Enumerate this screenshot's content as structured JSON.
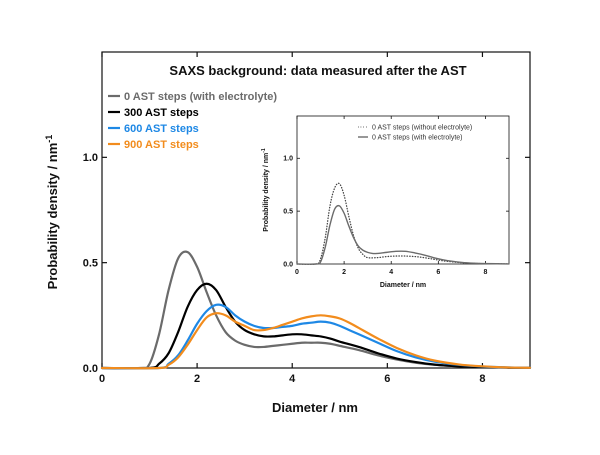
{
  "chart_data": [
    {
      "type": "line",
      "title": "SAXS background: data measured after the AST",
      "xlabel": "Diameter / nm",
      "ylabel_main": "Probability density / nm",
      "ylabel_sup": "-1",
      "xlim": [
        0,
        9
      ],
      "ylim": [
        0,
        1.5
      ],
      "xticks": [
        "0",
        "2",
        "4",
        "6",
        "8"
      ],
      "yticks": [
        "0.0",
        "0.5",
        "1.0"
      ],
      "legend_position": "top-left",
      "series": [
        {
          "name": "0 AST steps (with electrolyte)",
          "color": "#6b6b6b",
          "x": [
            0,
            0.8,
            1.0,
            1.2,
            1.4,
            1.6,
            1.8,
            2.0,
            2.2,
            2.4,
            2.6,
            2.8,
            3.0,
            3.2,
            3.4,
            3.6,
            3.8,
            4.0,
            4.2,
            4.4,
            4.6,
            4.8,
            5.0,
            5.4,
            5.8,
            6.2,
            6.6,
            7.0,
            7.5,
            8.0,
            8.5,
            9.0
          ],
          "y": [
            0,
            0.0,
            0.02,
            0.16,
            0.37,
            0.52,
            0.55,
            0.48,
            0.36,
            0.25,
            0.17,
            0.13,
            0.11,
            0.1,
            0.1,
            0.105,
            0.11,
            0.115,
            0.12,
            0.12,
            0.12,
            0.115,
            0.105,
            0.085,
            0.06,
            0.04,
            0.025,
            0.015,
            0.008,
            0.004,
            0.002,
            0.001
          ]
        },
        {
          "name": "300 AST steps",
          "color": "#000000",
          "x": [
            0,
            1.0,
            1.2,
            1.4,
            1.6,
            1.8,
            2.0,
            2.2,
            2.4,
            2.6,
            2.8,
            3.0,
            3.2,
            3.4,
            3.6,
            3.8,
            4.0,
            4.2,
            4.4,
            4.6,
            4.8,
            5.0,
            5.4,
            5.8,
            6.2,
            6.6,
            7.0,
            7.5,
            8.0,
            8.5,
            9.0
          ],
          "y": [
            0,
            0.0,
            0.02,
            0.07,
            0.17,
            0.29,
            0.37,
            0.4,
            0.37,
            0.29,
            0.22,
            0.18,
            0.16,
            0.15,
            0.15,
            0.155,
            0.16,
            0.16,
            0.155,
            0.15,
            0.14,
            0.125,
            0.1,
            0.07,
            0.045,
            0.028,
            0.016,
            0.008,
            0.004,
            0.002,
            0.001
          ]
        },
        {
          "name": "600 AST steps",
          "color": "#1e88e5",
          "x": [
            0,
            1.2,
            1.4,
            1.6,
            1.8,
            2.0,
            2.2,
            2.4,
            2.6,
            2.8,
            3.0,
            3.2,
            3.4,
            3.6,
            3.8,
            4.0,
            4.2,
            4.4,
            4.6,
            4.8,
            5.0,
            5.2,
            5.4,
            5.8,
            6.2,
            6.6,
            7.0,
            7.5,
            8.0,
            8.5,
            9.0
          ],
          "y": [
            0,
            0.0,
            0.02,
            0.06,
            0.13,
            0.21,
            0.27,
            0.3,
            0.29,
            0.25,
            0.22,
            0.2,
            0.19,
            0.19,
            0.195,
            0.2,
            0.21,
            0.215,
            0.22,
            0.215,
            0.2,
            0.18,
            0.16,
            0.12,
            0.08,
            0.05,
            0.03,
            0.015,
            0.007,
            0.003,
            0.001
          ]
        },
        {
          "name": "900 AST steps",
          "color": "#f28c1d",
          "x": [
            0,
            1.2,
            1.4,
            1.6,
            1.8,
            2.0,
            2.2,
            2.4,
            2.6,
            2.8,
            3.0,
            3.2,
            3.4,
            3.6,
            3.8,
            4.0,
            4.2,
            4.4,
            4.6,
            4.8,
            5.0,
            5.2,
            5.4,
            5.8,
            6.2,
            6.6,
            7.0,
            7.5,
            8.0,
            8.5,
            9.0
          ],
          "y": [
            0,
            0.0,
            0.015,
            0.05,
            0.11,
            0.18,
            0.24,
            0.26,
            0.25,
            0.22,
            0.2,
            0.18,
            0.18,
            0.19,
            0.205,
            0.22,
            0.235,
            0.245,
            0.25,
            0.245,
            0.235,
            0.215,
            0.19,
            0.14,
            0.095,
            0.06,
            0.035,
            0.017,
            0.008,
            0.003,
            0.001
          ]
        }
      ]
    },
    {
      "type": "line",
      "title": "",
      "xlabel": "Diameter / nm",
      "ylabel_main": "Probability density / nm",
      "ylabel_sup": "-1",
      "xlim": [
        0,
        9
      ],
      "ylim": [
        0,
        1.4
      ],
      "xticks": [
        "0",
        "2",
        "4",
        "6",
        "8"
      ],
      "yticks": [
        "0.0",
        "0.5",
        "1.0"
      ],
      "legend_position": "top-right",
      "series": [
        {
          "name": "0 AST steps (without electrolyte)",
          "color": "#444444",
          "style": "dotted",
          "x": [
            0,
            0.8,
            1.0,
            1.2,
            1.4,
            1.6,
            1.8,
            2.0,
            2.2,
            2.4,
            2.6,
            2.8,
            3.0,
            3.4,
            3.8,
            4.2,
            4.6,
            5.0,
            5.4,
            5.8,
            6.2,
            6.6,
            7.0,
            7.5,
            8.0,
            9.0
          ],
          "y": [
            0,
            0.0,
            0.05,
            0.25,
            0.55,
            0.72,
            0.76,
            0.65,
            0.45,
            0.27,
            0.15,
            0.09,
            0.06,
            0.06,
            0.07,
            0.075,
            0.075,
            0.07,
            0.06,
            0.045,
            0.03,
            0.02,
            0.012,
            0.006,
            0.003,
            0.001
          ]
        },
        {
          "name": "0 AST steps (with electrolyte)",
          "color": "#6b6b6b",
          "style": "solid",
          "x": [
            0,
            0.8,
            1.0,
            1.2,
            1.4,
            1.6,
            1.8,
            2.0,
            2.2,
            2.4,
            2.6,
            2.8,
            3.0,
            3.2,
            3.4,
            3.8,
            4.2,
            4.6,
            5.0,
            5.4,
            5.8,
            6.2,
            6.6,
            7.0,
            7.5,
            8.0,
            9.0
          ],
          "y": [
            0,
            0.0,
            0.02,
            0.16,
            0.37,
            0.52,
            0.55,
            0.48,
            0.36,
            0.25,
            0.17,
            0.13,
            0.11,
            0.1,
            0.1,
            0.11,
            0.12,
            0.12,
            0.105,
            0.085,
            0.06,
            0.04,
            0.025,
            0.015,
            0.008,
            0.004,
            0.001
          ]
        }
      ]
    }
  ]
}
